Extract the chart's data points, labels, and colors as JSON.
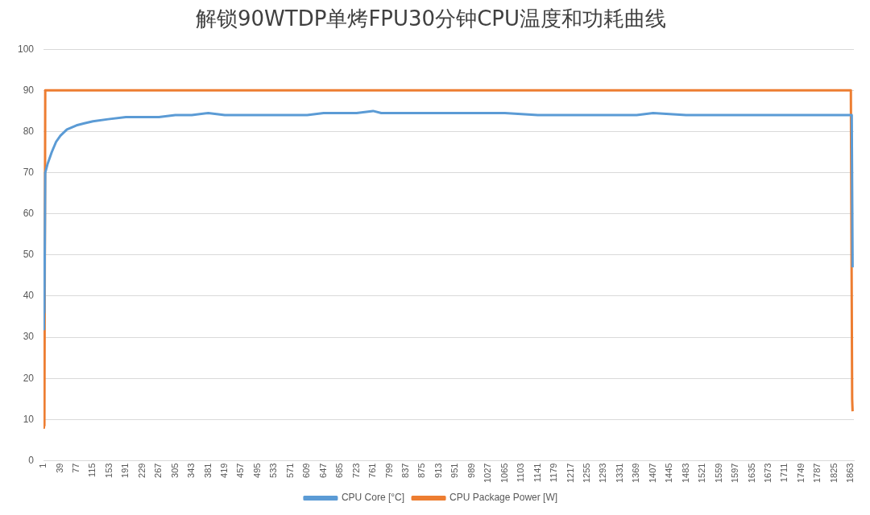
{
  "chart_data": {
    "type": "line",
    "title": "解锁90WTDP单烤FPU30分钟CPU温度和功耗曲线",
    "xlim": [
      1,
      1870
    ],
    "xticks": [
      1,
      39,
      77,
      115,
      153,
      191,
      229,
      267,
      305,
      343,
      381,
      419,
      457,
      495,
      533,
      571,
      609,
      647,
      685,
      723,
      761,
      799,
      837,
      875,
      913,
      951,
      989,
      1027,
      1065,
      1103,
      1141,
      1179,
      1217,
      1255,
      1293,
      1331,
      1369,
      1407,
      1445,
      1483,
      1521,
      1559,
      1597,
      1635,
      1673,
      1711,
      1749,
      1787,
      1825,
      1863
    ],
    "ylim": [
      0,
      100
    ],
    "yticks": [
      0,
      10,
      20,
      30,
      40,
      50,
      60,
      70,
      80,
      90,
      100
    ],
    "grid": "y",
    "legend": "bottom",
    "marker": "none",
    "line_style": "solid",
    "series": [
      {
        "name": "CPU Core [°C]",
        "color": "#5b9bd5",
        "x": [
          1,
          2,
          3,
          5,
          10,
          20,
          30,
          40,
          55,
          77,
          95,
          115,
          150,
          191,
          229,
          267,
          305,
          343,
          381,
          419,
          457,
          495,
          533,
          571,
          609,
          647,
          685,
          723,
          761,
          780,
          837,
          913,
          989,
          1065,
          1141,
          1217,
          1293,
          1369,
          1407,
          1483,
          1559,
          1635,
          1711,
          1787,
          1863,
          1865,
          1867
        ],
        "values": [
          32,
          37,
          36,
          70,
          72,
          75,
          77.5,
          79,
          80.5,
          81.5,
          82,
          82.5,
          83,
          83.5,
          83.5,
          83.5,
          84,
          84,
          84.5,
          84,
          84,
          84,
          84,
          84,
          84,
          84.5,
          84.5,
          84.5,
          85,
          84.5,
          84.5,
          84.5,
          84.5,
          84.5,
          84,
          84,
          84,
          84,
          84.5,
          84,
          84,
          84,
          84,
          84,
          84,
          84,
          47
        ]
      },
      {
        "name": "CPU Package Power [W]",
        "color": "#ed7d31",
        "x": [
          1,
          2,
          3,
          5,
          1863,
          1864,
          1866,
          1867
        ],
        "values": [
          8,
          19,
          8.5,
          90,
          90,
          90,
          15,
          12
        ]
      }
    ]
  }
}
